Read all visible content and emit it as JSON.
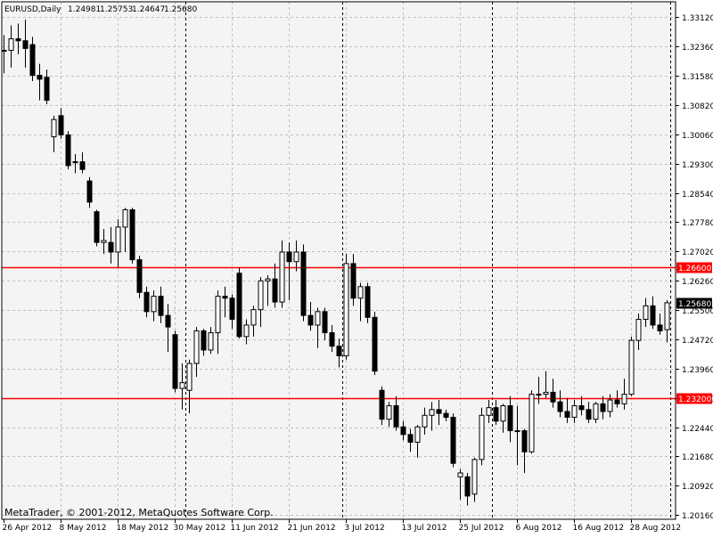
{
  "header": {
    "symbol": "EURUSD,Daily",
    "open": "1.24981",
    "high": "1.25753",
    "low": "1.24647",
    "close": "1.25680"
  },
  "watermark": "MetaTrader, © 2001-2012, MetaQuotes Software Corp.",
  "colors": {
    "background": "#f4f4f4",
    "grid": "#c0c0c0",
    "level_line": "#ff0000",
    "candle": "#000000",
    "price_tag": "#000000"
  },
  "chart_data": {
    "type": "candlestick",
    "title": "EURUSD,Daily",
    "xlabel": "",
    "ylabel": "",
    "ylim": [
      1.2008,
      1.3338
    ],
    "grid": true,
    "y_ticks": [
      "1.33120",
      "1.32360",
      "1.31580",
      "1.30820",
      "1.30060",
      "1.29300",
      "1.28540",
      "1.27780",
      "1.27020",
      "1.26260",
      "1.25500",
      "1.24720",
      "1.23960",
      "1.23200",
      "1.22440",
      "1.21680",
      "1.20920",
      "1.20160"
    ],
    "x_ticks": [
      "26 Apr 2012",
      "8 May 2012",
      "18 May 2012",
      "30 May 2012",
      "11 Jun 2012",
      "21 Jun 2012",
      "3 Jul 2012",
      "13 Jul 2012",
      "25 Jul 2012",
      "6 Aug 2012",
      "16 Aug 2012",
      "28 Aug 2012"
    ],
    "x_tick_bar_index": [
      0,
      8,
      16,
      24,
      32,
      40,
      48,
      56,
      64,
      72,
      80,
      88
    ],
    "period_separator_bar_index": [
      25.5,
      47.5,
      68.5,
      93.5
    ],
    "levels": [
      {
        "price": 1.266,
        "label": "1.26600"
      },
      {
        "price": 1.232,
        "label": "1.23200"
      }
    ],
    "current_price_label": "1.25680",
    "current_price": 1.2568,
    "candles": [
      {
        "o": 1.3225,
        "h": 1.3265,
        "l": 1.3165,
        "c": 1.3225
      },
      {
        "o": 1.3225,
        "h": 1.329,
        "l": 1.318,
        "c": 1.3255
      },
      {
        "o": 1.3255,
        "h": 1.3295,
        "l": 1.3215,
        "c": 1.325
      },
      {
        "o": 1.325,
        "h": 1.3305,
        "l": 1.318,
        "c": 1.323
      },
      {
        "o": 1.324,
        "h": 1.326,
        "l": 1.3145,
        "c": 1.316
      },
      {
        "o": 1.316,
        "h": 1.319,
        "l": 1.3095,
        "c": 1.315
      },
      {
        "o": 1.3155,
        "h": 1.3175,
        "l": 1.3085,
        "c": 1.3095
      },
      {
        "o": 1.3,
        "h": 1.3055,
        "l": 1.296,
        "c": 1.3045
      },
      {
        "o": 1.3055,
        "h": 1.3075,
        "l": 1.2995,
        "c": 1.3005
      },
      {
        "o": 1.3005,
        "h": 1.3015,
        "l": 1.2915,
        "c": 1.2925
      },
      {
        "o": 1.2935,
        "h": 1.2955,
        "l": 1.2905,
        "c": 1.2935
      },
      {
        "o": 1.2935,
        "h": 1.296,
        "l": 1.2905,
        "c": 1.2915
      },
      {
        "o": 1.2885,
        "h": 1.2895,
        "l": 1.2815,
        "c": 1.283
      },
      {
        "o": 1.2805,
        "h": 1.281,
        "l": 1.2715,
        "c": 1.2725
      },
      {
        "o": 1.2725,
        "h": 1.276,
        "l": 1.2695,
        "c": 1.273
      },
      {
        "o": 1.2725,
        "h": 1.2765,
        "l": 1.267,
        "c": 1.27
      },
      {
        "o": 1.27,
        "h": 1.2785,
        "l": 1.266,
        "c": 1.2765
      },
      {
        "o": 1.2765,
        "h": 1.2815,
        "l": 1.27,
        "c": 1.281
      },
      {
        "o": 1.281,
        "h": 1.2815,
        "l": 1.267,
        "c": 1.268
      },
      {
        "o": 1.268,
        "h": 1.269,
        "l": 1.258,
        "c": 1.2595
      },
      {
        "o": 1.2595,
        "h": 1.261,
        "l": 1.253,
        "c": 1.2545
      },
      {
        "o": 1.2545,
        "h": 1.26,
        "l": 1.252,
        "c": 1.2585
      },
      {
        "o": 1.2585,
        "h": 1.261,
        "l": 1.2515,
        "c": 1.2535
      },
      {
        "o": 1.2535,
        "h": 1.2565,
        "l": 1.244,
        "c": 1.2505
      },
      {
        "o": 1.2485,
        "h": 1.2495,
        "l": 1.2335,
        "c": 1.2345
      },
      {
        "o": 1.2345,
        "h": 1.241,
        "l": 1.229,
        "c": 1.236
      },
      {
        "o": 1.234,
        "h": 1.242,
        "l": 1.228,
        "c": 1.241
      },
      {
        "o": 1.241,
        "h": 1.2505,
        "l": 1.2375,
        "c": 1.2495
      },
      {
        "o": 1.2495,
        "h": 1.25,
        "l": 1.243,
        "c": 1.2445
      },
      {
        "o": 1.2445,
        "h": 1.2505,
        "l": 1.2435,
        "c": 1.249
      },
      {
        "o": 1.249,
        "h": 1.26,
        "l": 1.2435,
        "c": 1.2585
      },
      {
        "o": 1.2585,
        "h": 1.261,
        "l": 1.253,
        "c": 1.258
      },
      {
        "o": 1.258,
        "h": 1.259,
        "l": 1.25,
        "c": 1.2525
      },
      {
        "o": 1.2645,
        "h": 1.266,
        "l": 1.2475,
        "c": 1.248
      },
      {
        "o": 1.248,
        "h": 1.2525,
        "l": 1.246,
        "c": 1.251
      },
      {
        "o": 1.251,
        "h": 1.256,
        "l": 1.248,
        "c": 1.255
      },
      {
        "o": 1.255,
        "h": 1.2635,
        "l": 1.2505,
        "c": 1.2625
      },
      {
        "o": 1.2625,
        "h": 1.264,
        "l": 1.256,
        "c": 1.263
      },
      {
        "o": 1.263,
        "h": 1.267,
        "l": 1.2555,
        "c": 1.257
      },
      {
        "o": 1.257,
        "h": 1.273,
        "l": 1.2555,
        "c": 1.27
      },
      {
        "o": 1.27,
        "h": 1.2725,
        "l": 1.2575,
        "c": 1.2675
      },
      {
        "o": 1.2675,
        "h": 1.273,
        "l": 1.265,
        "c": 1.27
      },
      {
        "o": 1.27,
        "h": 1.272,
        "l": 1.252,
        "c": 1.2535
      },
      {
        "o": 1.2535,
        "h": 1.257,
        "l": 1.2495,
        "c": 1.251
      },
      {
        "o": 1.251,
        "h": 1.2555,
        "l": 1.245,
        "c": 1.2545
      },
      {
        "o": 1.2545,
        "h": 1.2555,
        "l": 1.247,
        "c": 1.249
      },
      {
        "o": 1.249,
        "h": 1.251,
        "l": 1.244,
        "c": 1.2455
      },
      {
        "o": 1.2455,
        "h": 1.2475,
        "l": 1.24,
        "c": 1.243
      },
      {
        "o": 1.243,
        "h": 1.2695,
        "l": 1.242,
        "c": 1.267
      },
      {
        "o": 1.267,
        "h": 1.2695,
        "l": 1.256,
        "c": 1.258
      },
      {
        "o": 1.258,
        "h": 1.262,
        "l": 1.252,
        "c": 1.261
      },
      {
        "o": 1.261,
        "h": 1.262,
        "l": 1.2515,
        "c": 1.253
      },
      {
        "o": 1.253,
        "h": 1.2545,
        "l": 1.238,
        "c": 1.239
      },
      {
        "o": 1.234,
        "h": 1.235,
        "l": 1.225,
        "c": 1.2265
      },
      {
        "o": 1.2265,
        "h": 1.231,
        "l": 1.2245,
        "c": 1.23
      },
      {
        "o": 1.23,
        "h": 1.2325,
        "l": 1.2235,
        "c": 1.2245
      },
      {
        "o": 1.2245,
        "h": 1.226,
        "l": 1.221,
        "c": 1.2225
      },
      {
        "o": 1.2225,
        "h": 1.224,
        "l": 1.218,
        "c": 1.2205
      },
      {
        "o": 1.2205,
        "h": 1.225,
        "l": 1.2165,
        "c": 1.2245
      },
      {
        "o": 1.2245,
        "h": 1.2295,
        "l": 1.2225,
        "c": 1.2275
      },
      {
        "o": 1.2275,
        "h": 1.231,
        "l": 1.2235,
        "c": 1.229
      },
      {
        "o": 1.229,
        "h": 1.2315,
        "l": 1.225,
        "c": 1.228
      },
      {
        "o": 1.228,
        "h": 1.229,
        "l": 1.226,
        "c": 1.227
      },
      {
        "o": 1.227,
        "h": 1.228,
        "l": 1.214,
        "c": 1.215
      },
      {
        "o": 1.2115,
        "h": 1.2135,
        "l": 1.2055,
        "c": 1.2125
      },
      {
        "o": 1.2115,
        "h": 1.2125,
        "l": 1.204,
        "c": 1.2065
      },
      {
        "o": 1.207,
        "h": 1.2165,
        "l": 1.205,
        "c": 1.216
      },
      {
        "o": 1.216,
        "h": 1.2295,
        "l": 1.2145,
        "c": 1.2275
      },
      {
        "o": 1.2275,
        "h": 1.2315,
        "l": 1.2255,
        "c": 1.2295
      },
      {
        "o": 1.2295,
        "h": 1.2315,
        "l": 1.225,
        "c": 1.226
      },
      {
        "o": 1.226,
        "h": 1.2305,
        "l": 1.223,
        "c": 1.23
      },
      {
        "o": 1.23,
        "h": 1.2325,
        "l": 1.2205,
        "c": 1.2235
      },
      {
        "o": 1.2235,
        "h": 1.23,
        "l": 1.2145,
        "c": 1.2235
      },
      {
        "o": 1.2235,
        "h": 1.224,
        "l": 1.2125,
        "c": 1.218
      },
      {
        "o": 1.218,
        "h": 1.234,
        "l": 1.2175,
        "c": 1.233
      },
      {
        "o": 1.233,
        "h": 1.2375,
        "l": 1.2305,
        "c": 1.233
      },
      {
        "o": 1.233,
        "h": 1.239,
        "l": 1.232,
        "c": 1.2335
      },
      {
        "o": 1.2335,
        "h": 1.237,
        "l": 1.2295,
        "c": 1.231
      },
      {
        "o": 1.231,
        "h": 1.234,
        "l": 1.227,
        "c": 1.2285
      },
      {
        "o": 1.2285,
        "h": 1.232,
        "l": 1.2255,
        "c": 1.227
      },
      {
        "o": 1.227,
        "h": 1.2315,
        "l": 1.2255,
        "c": 1.23
      },
      {
        "o": 1.23,
        "h": 1.2325,
        "l": 1.2275,
        "c": 1.229
      },
      {
        "o": 1.229,
        "h": 1.231,
        "l": 1.2255,
        "c": 1.2265
      },
      {
        "o": 1.2265,
        "h": 1.231,
        "l": 1.2255,
        "c": 1.2305
      },
      {
        "o": 1.2305,
        "h": 1.2325,
        "l": 1.2265,
        "c": 1.2285
      },
      {
        "o": 1.2285,
        "h": 1.233,
        "l": 1.227,
        "c": 1.2315
      },
      {
        "o": 1.2315,
        "h": 1.234,
        "l": 1.2295,
        "c": 1.2305
      },
      {
        "o": 1.2305,
        "h": 1.237,
        "l": 1.229,
        "c": 1.233
      },
      {
        "o": 1.233,
        "h": 1.248,
        "l": 1.2325,
        "c": 1.247
      },
      {
        "o": 1.247,
        "h": 1.254,
        "l": 1.2445,
        "c": 1.2525
      },
      {
        "o": 1.2525,
        "h": 1.258,
        "l": 1.2505,
        "c": 1.256
      },
      {
        "o": 1.256,
        "h": 1.2585,
        "l": 1.25,
        "c": 1.251
      },
      {
        "o": 1.251,
        "h": 1.254,
        "l": 1.2485,
        "c": 1.2495
      },
      {
        "o": 1.2498,
        "h": 1.2575,
        "l": 1.2465,
        "c": 1.2568
      }
    ]
  }
}
